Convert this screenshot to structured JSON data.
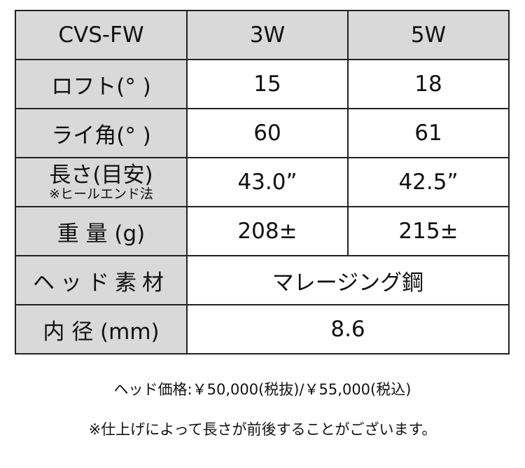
{
  "table": {
    "header": [
      "CVS-FW",
      "3W",
      "5W"
    ],
    "rows": [
      {
        "label": "ロフト(° )",
        "values": [
          "15",
          "18"
        ]
      },
      {
        "label": "ライ角(° )",
        "values": [
          "60",
          "61"
        ]
      },
      {
        "label": "長さ(目安)",
        "sublabel": "※ヒールエンド法",
        "values": [
          "43.0”",
          "42.5”"
        ]
      },
      {
        "label": "重 量 (g)",
        "values": [
          "208±",
          "215±"
        ]
      },
      {
        "label": "ヘッド素材",
        "value": "マレージング鋼"
      },
      {
        "label": "内 径 (mm)",
        "value": "8.6"
      }
    ]
  },
  "price_note": "ヘッド価格:￥50,000(税抜)/￥55,000(税込)",
  "length_note": "※仕上げによって長さが前後することがございます。"
}
